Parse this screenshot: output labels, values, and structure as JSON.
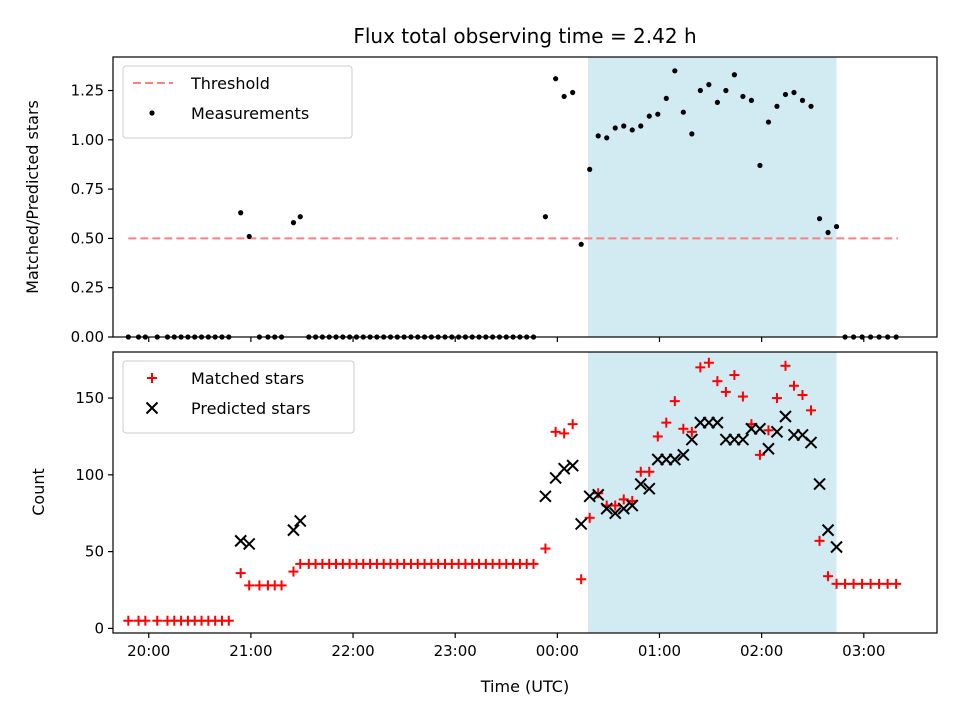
{
  "chart_data": [
    {
      "type": "scatter",
      "title": "Flux total observing time = 2.42 h",
      "xlabel": "",
      "ylabel": "Matched/Predicted stars",
      "ylim": [
        0,
        1.42
      ],
      "xlim": [
        "19:39",
        "03:43"
      ],
      "x_ticks": [],
      "y_ticks": [
        "0.00",
        "0.25",
        "0.50",
        "0.75",
        "1.00",
        "1.25"
      ],
      "shaded_span": [
        "00:18",
        "02:44"
      ],
      "shade_color": "#add8e6",
      "legend_position": "top-left",
      "threshold": {
        "name": "Threshold",
        "value": 0.5,
        "x_range": [
          "19:48",
          "03:20"
        ],
        "color": "#ff7f7f"
      },
      "series": [
        {
          "name": "Measurements",
          "color": "#000000",
          "marker": "dot",
          "points": [
            [
              "19:48",
              0
            ],
            [
              "19:54",
              0
            ],
            [
              "19:58",
              0
            ],
            [
              "20:05",
              0
            ],
            [
              "20:11",
              0
            ],
            [
              "20:15",
              0
            ],
            [
              "20:19",
              0
            ],
            [
              "20:23",
              0
            ],
            [
              "20:27",
              0
            ],
            [
              "20:31",
              0
            ],
            [
              "20:35",
              0
            ],
            [
              "20:39",
              0
            ],
            [
              "20:43",
              0
            ],
            [
              "20:47",
              0
            ],
            [
              "20:54",
              0.63
            ],
            [
              "20:59",
              0.51
            ],
            [
              "21:05",
              0
            ],
            [
              "21:10",
              0
            ],
            [
              "21:14",
              0
            ],
            [
              "21:18",
              0
            ],
            [
              "21:25",
              0.58
            ],
            [
              "21:29",
              0.61
            ],
            [
              "21:34",
              0
            ],
            [
              "21:38",
              0
            ],
            [
              "21:42",
              0
            ],
            [
              "21:46",
              0
            ],
            [
              "21:50",
              0
            ],
            [
              "21:54",
              0
            ],
            [
              "21:58",
              0
            ],
            [
              "22:02",
              0
            ],
            [
              "22:06",
              0
            ],
            [
              "22:10",
              0
            ],
            [
              "22:14",
              0
            ],
            [
              "22:18",
              0
            ],
            [
              "22:22",
              0
            ],
            [
              "22:26",
              0
            ],
            [
              "22:30",
              0
            ],
            [
              "22:34",
              0
            ],
            [
              "22:38",
              0
            ],
            [
              "22:42",
              0
            ],
            [
              "22:46",
              0
            ],
            [
              "22:50",
              0
            ],
            [
              "22:54",
              0
            ],
            [
              "22:58",
              0
            ],
            [
              "23:02",
              0
            ],
            [
              "23:06",
              0
            ],
            [
              "23:10",
              0
            ],
            [
              "23:14",
              0
            ],
            [
              "23:18",
              0
            ],
            [
              "23:22",
              0
            ],
            [
              "23:26",
              0
            ],
            [
              "23:30",
              0
            ],
            [
              "23:34",
              0
            ],
            [
              "23:38",
              0
            ],
            [
              "23:42",
              0
            ],
            [
              "23:46",
              0
            ],
            [
              "23:53",
              0.61
            ],
            [
              "23:59",
              1.31
            ],
            [
              "00:04",
              1.22
            ],
            [
              "00:09",
              1.24
            ],
            [
              "00:14",
              0.47
            ],
            [
              "00:19",
              0.85
            ],
            [
              "00:24",
              1.02
            ],
            [
              "00:29",
              1.01
            ],
            [
              "00:34",
              1.06
            ],
            [
              "00:39",
              1.07
            ],
            [
              "00:44",
              1.05
            ],
            [
              "00:49",
              1.07
            ],
            [
              "00:54",
              1.12
            ],
            [
              "00:59",
              1.13
            ],
            [
              "01:04",
              1.21
            ],
            [
              "01:09",
              1.35
            ],
            [
              "01:14",
              1.14
            ],
            [
              "01:19",
              1.03
            ],
            [
              "01:24",
              1.25
            ],
            [
              "01:29",
              1.28
            ],
            [
              "01:34",
              1.19
            ],
            [
              "01:39",
              1.25
            ],
            [
              "01:44",
              1.33
            ],
            [
              "01:49",
              1.22
            ],
            [
              "01:54",
              1.2
            ],
            [
              "01:59",
              0.87
            ],
            [
              "02:04",
              1.09
            ],
            [
              "02:09",
              1.17
            ],
            [
              "02:14",
              1.23
            ],
            [
              "02:19",
              1.24
            ],
            [
              "02:24",
              1.2
            ],
            [
              "02:29",
              1.17
            ],
            [
              "02:34",
              0.6
            ],
            [
              "02:39",
              0.53
            ],
            [
              "02:44",
              0.56
            ],
            [
              "02:49",
              0
            ],
            [
              "02:54",
              0
            ],
            [
              "02:59",
              0
            ],
            [
              "03:04",
              0
            ],
            [
              "03:09",
              0
            ],
            [
              "03:14",
              0
            ],
            [
              "03:19",
              0
            ]
          ]
        }
      ]
    },
    {
      "type": "scatter",
      "title": "",
      "xlabel": "Time (UTC)",
      "ylabel": "Count",
      "ylim": [
        -3,
        180
      ],
      "xlim": [
        "19:39",
        "03:43"
      ],
      "x_ticks": [
        "20:00",
        "21:00",
        "22:00",
        "23:00",
        "00:00",
        "01:00",
        "02:00",
        "03:00"
      ],
      "y_ticks": [
        "0",
        "50",
        "100",
        "150"
      ],
      "shaded_span": [
        "00:18",
        "02:44"
      ],
      "shade_color": "#add8e6",
      "legend_position": "top-left",
      "series": [
        {
          "name": "Matched stars",
          "color": "#ff0000",
          "marker": "plus",
          "points": [
            [
              "19:48",
              5
            ],
            [
              "19:54",
              5
            ],
            [
              "19:58",
              5
            ],
            [
              "20:05",
              5
            ],
            [
              "20:11",
              5
            ],
            [
              "20:15",
              5
            ],
            [
              "20:19",
              5
            ],
            [
              "20:23",
              5
            ],
            [
              "20:27",
              5
            ],
            [
              "20:31",
              5
            ],
            [
              "20:35",
              5
            ],
            [
              "20:39",
              5
            ],
            [
              "20:43",
              5
            ],
            [
              "20:47",
              5
            ],
            [
              "20:54",
              36
            ],
            [
              "20:59",
              28
            ],
            [
              "21:05",
              28
            ],
            [
              "21:10",
              28
            ],
            [
              "21:14",
              28
            ],
            [
              "21:18",
              28
            ],
            [
              "21:25",
              37
            ],
            [
              "21:29",
              42
            ],
            [
              "21:34",
              42
            ],
            [
              "21:38",
              42
            ],
            [
              "21:42",
              42
            ],
            [
              "21:46",
              42
            ],
            [
              "21:50",
              42
            ],
            [
              "21:54",
              42
            ],
            [
              "21:58",
              42
            ],
            [
              "22:02",
              42
            ],
            [
              "22:06",
              42
            ],
            [
              "22:10",
              42
            ],
            [
              "22:14",
              42
            ],
            [
              "22:18",
              42
            ],
            [
              "22:22",
              42
            ],
            [
              "22:26",
              42
            ],
            [
              "22:30",
              42
            ],
            [
              "22:34",
              42
            ],
            [
              "22:38",
              42
            ],
            [
              "22:42",
              42
            ],
            [
              "22:46",
              42
            ],
            [
              "22:50",
              42
            ],
            [
              "22:54",
              42
            ],
            [
              "22:58",
              42
            ],
            [
              "23:02",
              42
            ],
            [
              "23:06",
              42
            ],
            [
              "23:10",
              42
            ],
            [
              "23:14",
              42
            ],
            [
              "23:18",
              42
            ],
            [
              "23:22",
              42
            ],
            [
              "23:26",
              42
            ],
            [
              "23:30",
              42
            ],
            [
              "23:34",
              42
            ],
            [
              "23:38",
              42
            ],
            [
              "23:42",
              42
            ],
            [
              "23:46",
              42
            ],
            [
              "23:53",
              52
            ],
            [
              "23:59",
              128
            ],
            [
              "00:04",
              127
            ],
            [
              "00:09",
              133
            ],
            [
              "00:14",
              32
            ],
            [
              "00:19",
              72
            ],
            [
              "00:24",
              88
            ],
            [
              "00:29",
              80
            ],
            [
              "00:34",
              80
            ],
            [
              "00:39",
              84
            ],
            [
              "00:44",
              83
            ],
            [
              "00:49",
              102
            ],
            [
              "00:54",
              102
            ],
            [
              "00:59",
              125
            ],
            [
              "01:04",
              134
            ],
            [
              "01:09",
              148
            ],
            [
              "01:14",
              130
            ],
            [
              "01:19",
              128
            ],
            [
              "01:24",
              170
            ],
            [
              "01:29",
              173
            ],
            [
              "01:34",
              161
            ],
            [
              "01:39",
              154
            ],
            [
              "01:44",
              165
            ],
            [
              "01:49",
              151
            ],
            [
              "01:54",
              133
            ],
            [
              "01:59",
              113
            ],
            [
              "02:04",
              129
            ],
            [
              "02:09",
              150
            ],
            [
              "02:14",
              171
            ],
            [
              "02:19",
              158
            ],
            [
              "02:24",
              152
            ],
            [
              "02:29",
              142
            ],
            [
              "02:34",
              57
            ],
            [
              "02:39",
              34
            ],
            [
              "02:44",
              29
            ],
            [
              "02:49",
              29
            ],
            [
              "02:54",
              29
            ],
            [
              "02:59",
              29
            ],
            [
              "03:04",
              29
            ],
            [
              "03:09",
              29
            ],
            [
              "03:14",
              29
            ],
            [
              "03:19",
              29
            ]
          ]
        },
        {
          "name": "Predicted stars",
          "color": "#000000",
          "marker": "x",
          "points": [
            [
              "20:54",
              57
            ],
            [
              "20:59",
              55
            ],
            [
              "21:25",
              64
            ],
            [
              "21:29",
              70
            ],
            [
              "23:53",
              86
            ],
            [
              "23:59",
              98
            ],
            [
              "00:04",
              104
            ],
            [
              "00:09",
              106
            ],
            [
              "00:14",
              68
            ],
            [
              "00:19",
              86
            ],
            [
              "00:24",
              87
            ],
            [
              "00:29",
              78
            ],
            [
              "00:34",
              75
            ],
            [
              "00:39",
              78
            ],
            [
              "00:44",
              80
            ],
            [
              "00:49",
              94
            ],
            [
              "00:54",
              91
            ],
            [
              "00:59",
              110
            ],
            [
              "01:04",
              110
            ],
            [
              "01:09",
              110
            ],
            [
              "01:14",
              113
            ],
            [
              "01:19",
              123
            ],
            [
              "01:24",
              134
            ],
            [
              "01:29",
              134
            ],
            [
              "01:34",
              134
            ],
            [
              "01:39",
              123
            ],
            [
              "01:44",
              123
            ],
            [
              "01:49",
              123
            ],
            [
              "01:54",
              130
            ],
            [
              "01:59",
              130
            ],
            [
              "02:04",
              117
            ],
            [
              "02:09",
              128
            ],
            [
              "02:14",
              138
            ],
            [
              "02:19",
              126
            ],
            [
              "02:24",
              126
            ],
            [
              "02:29",
              121
            ],
            [
              "02:34",
              94
            ],
            [
              "02:39",
              64
            ],
            [
              "02:44",
              53
            ]
          ]
        }
      ]
    }
  ]
}
